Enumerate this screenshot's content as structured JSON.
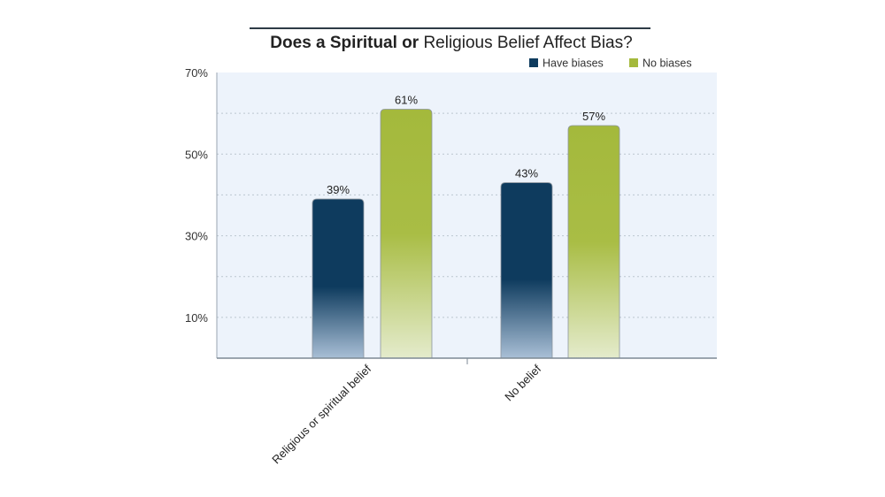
{
  "chart_data": {
    "type": "bar",
    "title_bold": "Does a Spiritual or",
    "title_rest": "Religious Belief Affect Bias?",
    "categories": [
      "Religious or spiritual belief",
      "No belief"
    ],
    "series": [
      {
        "name": "Have biases",
        "values": [
          39,
          43
        ],
        "labels": [
          "39%",
          "43%"
        ],
        "color": "#0e3b5e"
      },
      {
        "name": "No biases",
        "values": [
          61,
          57
        ],
        "labels": [
          "61%",
          "57%"
        ],
        "color": "#a4b93c"
      }
    ],
    "yticks": [
      10,
      30,
      50,
      70
    ],
    "ytick_labels": [
      "10%",
      "30%",
      "50%",
      "70%"
    ],
    "ylim": [
      0,
      70
    ],
    "grid": true,
    "legend_position": "top-right",
    "xlabel": "",
    "ylabel": ""
  }
}
